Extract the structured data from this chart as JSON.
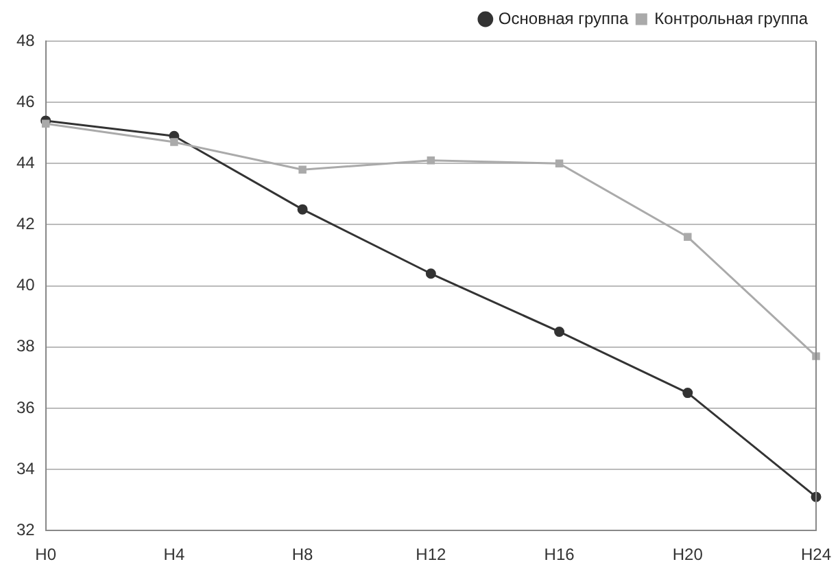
{
  "chart_data": {
    "type": "line",
    "categories": [
      "Н0",
      "Н4",
      "Н8",
      "Н12",
      "Н16",
      "Н20",
      "Н24"
    ],
    "series": [
      {
        "name": "Основная группа",
        "color": "#333333",
        "marker": "circle",
        "values": [
          45.4,
          44.9,
          42.5,
          40.4,
          38.5,
          36.5,
          33.1
        ]
      },
      {
        "name": "Контрольная группа",
        "color": "#aaaaaa",
        "marker": "square",
        "values": [
          45.3,
          44.7,
          43.8,
          44.1,
          44.0,
          41.6,
          37.7
        ]
      }
    ],
    "ylim": [
      32,
      48
    ],
    "yticks": [
      32,
      34,
      36,
      38,
      40,
      42,
      44,
      46,
      48
    ],
    "grid": "y",
    "legend": "top right"
  }
}
